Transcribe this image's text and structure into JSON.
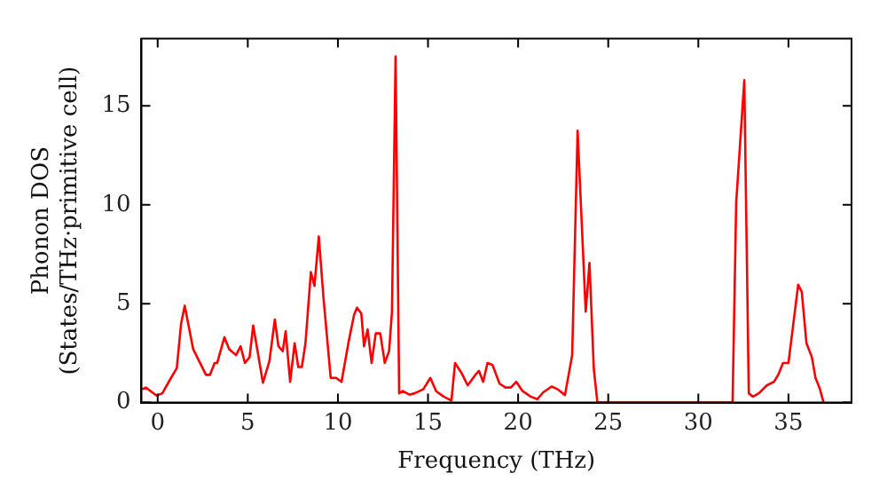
{
  "chart_data": {
    "type": "line",
    "xlabel": "Frequency (THz)",
    "ylabel": "Phonon DOS\n(States/THz·primitive cell)",
    "xlim": [
      -0.9,
      38.5
    ],
    "ylim": [
      0,
      18.4
    ],
    "xticks": [
      0,
      5,
      10,
      15,
      20,
      25,
      30,
      35
    ],
    "yticks": [
      0,
      5,
      10,
      15
    ],
    "grid": false,
    "legend": false,
    "marker": "none",
    "line_style": "solid",
    "series": [
      {
        "color": "#ff0000",
        "x": [
          -0.87,
          -0.65,
          -0.06,
          0.26,
          0.74,
          1.06,
          1.3,
          1.5,
          1.97,
          2.3,
          2.68,
          2.9,
          3.16,
          3.3,
          3.7,
          3.97,
          4.35,
          4.6,
          4.84,
          5.1,
          5.3,
          5.84,
          6.2,
          6.5,
          6.7,
          6.94,
          7.1,
          7.35,
          7.6,
          7.8,
          8.0,
          8.2,
          8.5,
          8.7,
          8.94,
          9.2,
          9.6,
          9.9,
          10.2,
          10.6,
          10.9,
          11.06,
          11.3,
          11.45,
          11.65,
          11.87,
          12.1,
          12.35,
          12.6,
          12.84,
          13.0,
          13.2,
          13.4,
          13.6,
          13.97,
          14.26,
          14.74,
          15.13,
          15.45,
          15.87,
          16.3,
          16.5,
          16.86,
          17.2,
          17.67,
          17.83,
          18.06,
          18.3,
          18.58,
          18.97,
          19.3,
          19.6,
          19.9,
          20.25,
          20.7,
          21.06,
          21.4,
          21.86,
          22.2,
          22.6,
          23.0,
          23.3,
          23.75,
          23.96,
          24.2,
          24.4,
          31.9,
          32.1,
          32.55,
          32.8,
          33.03,
          33.36,
          33.8,
          34.2,
          34.43,
          34.7,
          35.0,
          35.54,
          35.74,
          36.0,
          36.3,
          36.5,
          36.72,
          36.95
        ],
        "values": [
          0.67,
          0.76,
          0.35,
          0.47,
          1.25,
          1.74,
          4.0,
          4.9,
          2.7,
          2.1,
          1.4,
          1.4,
          2.0,
          2.0,
          3.3,
          2.7,
          2.4,
          2.85,
          2.0,
          2.3,
          3.9,
          1.0,
          2.1,
          4.2,
          2.85,
          2.6,
          3.6,
          1.05,
          3.0,
          1.8,
          1.8,
          3.0,
          6.6,
          5.9,
          8.4,
          5.3,
          1.25,
          1.25,
          1.05,
          3.1,
          4.45,
          4.8,
          4.5,
          2.85,
          3.7,
          2.0,
          3.5,
          3.5,
          2.0,
          2.6,
          4.6,
          17.5,
          0.47,
          0.58,
          0.4,
          0.47,
          0.67,
          1.25,
          0.58,
          0.3,
          0.1,
          2.0,
          1.5,
          0.87,
          1.45,
          1.6,
          1.05,
          2.0,
          1.9,
          0.96,
          0.76,
          0.76,
          1.05,
          0.58,
          0.3,
          0.17,
          0.52,
          0.81,
          0.67,
          0.38,
          2.4,
          13.75,
          4.6,
          7.06,
          1.7,
          0,
          0,
          10.1,
          16.3,
          0.47,
          0.3,
          0.47,
          0.87,
          1.05,
          1.4,
          2.0,
          2.0,
          5.96,
          5.6,
          3.0,
          2.3,
          1.25,
          0.76,
          0
        ]
      }
    ]
  }
}
